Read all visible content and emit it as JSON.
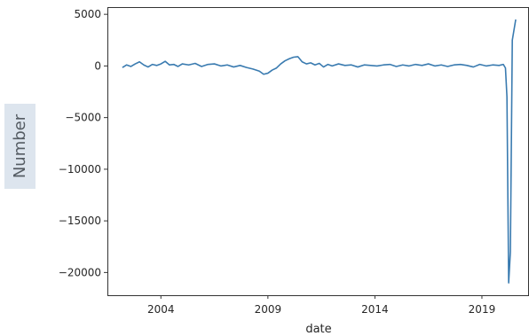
{
  "chart_data": {
    "type": "line",
    "xlabel": "date",
    "ylabel": "Number",
    "xlim": [
      2001.5,
      2021.2
    ],
    "ylim": [
      -22200,
      5700
    ],
    "x_ticks": [
      2004,
      2009,
      2014,
      2019
    ],
    "x_tick_labels": [
      "2004",
      "2009",
      "2014",
      "2019"
    ],
    "y_ticks": [
      5000,
      0,
      -5000,
      -10000,
      -15000,
      -20000
    ],
    "y_tick_labels": [
      "5000",
      "0",
      "−5000",
      "−10000",
      "−15000",
      "−20000"
    ],
    "grid": false,
    "line_color": "#3a7bb0",
    "series": [
      {
        "x": [
          2002.2,
          2002.4,
          2002.6,
          2002.8,
          2003.0,
          2003.2,
          2003.4,
          2003.6,
          2003.8,
          2004.0,
          2004.2,
          2004.4,
          2004.6,
          2004.8,
          2005.0,
          2005.3,
          2005.6,
          2005.9,
          2006.2,
          2006.5,
          2006.8,
          2007.1,
          2007.4,
          2007.7,
          2008.0,
          2008.3,
          2008.6,
          2008.8,
          2009.0,
          2009.2,
          2009.4,
          2009.6,
          2009.8,
          2010.0,
          2010.2,
          2010.4,
          2010.6,
          2010.8,
          2011.0,
          2011.2,
          2011.4,
          2011.6,
          2011.8,
          2012.0,
          2012.3,
          2012.6,
          2012.9,
          2013.2,
          2013.5,
          2013.8,
          2014.1,
          2014.4,
          2014.7,
          2015.0,
          2015.3,
          2015.6,
          2015.9,
          2016.2,
          2016.5,
          2016.8,
          2017.1,
          2017.4,
          2017.7,
          2018.0,
          2018.3,
          2018.6,
          2018.9,
          2019.2,
          2019.5,
          2019.8,
          2020.0,
          2020.1,
          2020.17,
          2020.25,
          2020.33,
          2020.42,
          2020.5,
          2020.58
        ],
        "y": [
          -150,
          100,
          -50,
          200,
          400,
          100,
          -100,
          150,
          50,
          200,
          450,
          100,
          150,
          -50,
          200,
          100,
          250,
          -50,
          150,
          200,
          0,
          100,
          -100,
          50,
          -150,
          -300,
          -500,
          -800,
          -700,
          -400,
          -200,
          200,
          500,
          700,
          850,
          900,
          400,
          200,
          300,
          100,
          250,
          -100,
          150,
          0,
          200,
          50,
          100,
          -100,
          100,
          50,
          0,
          100,
          150,
          -50,
          100,
          0,
          150,
          50,
          200,
          0,
          100,
          -50,
          100,
          150,
          50,
          -100,
          150,
          0,
          100,
          50,
          150,
          -200,
          -3000,
          -21000,
          -18000,
          2500,
          3500,
          4500
        ]
      }
    ]
  }
}
